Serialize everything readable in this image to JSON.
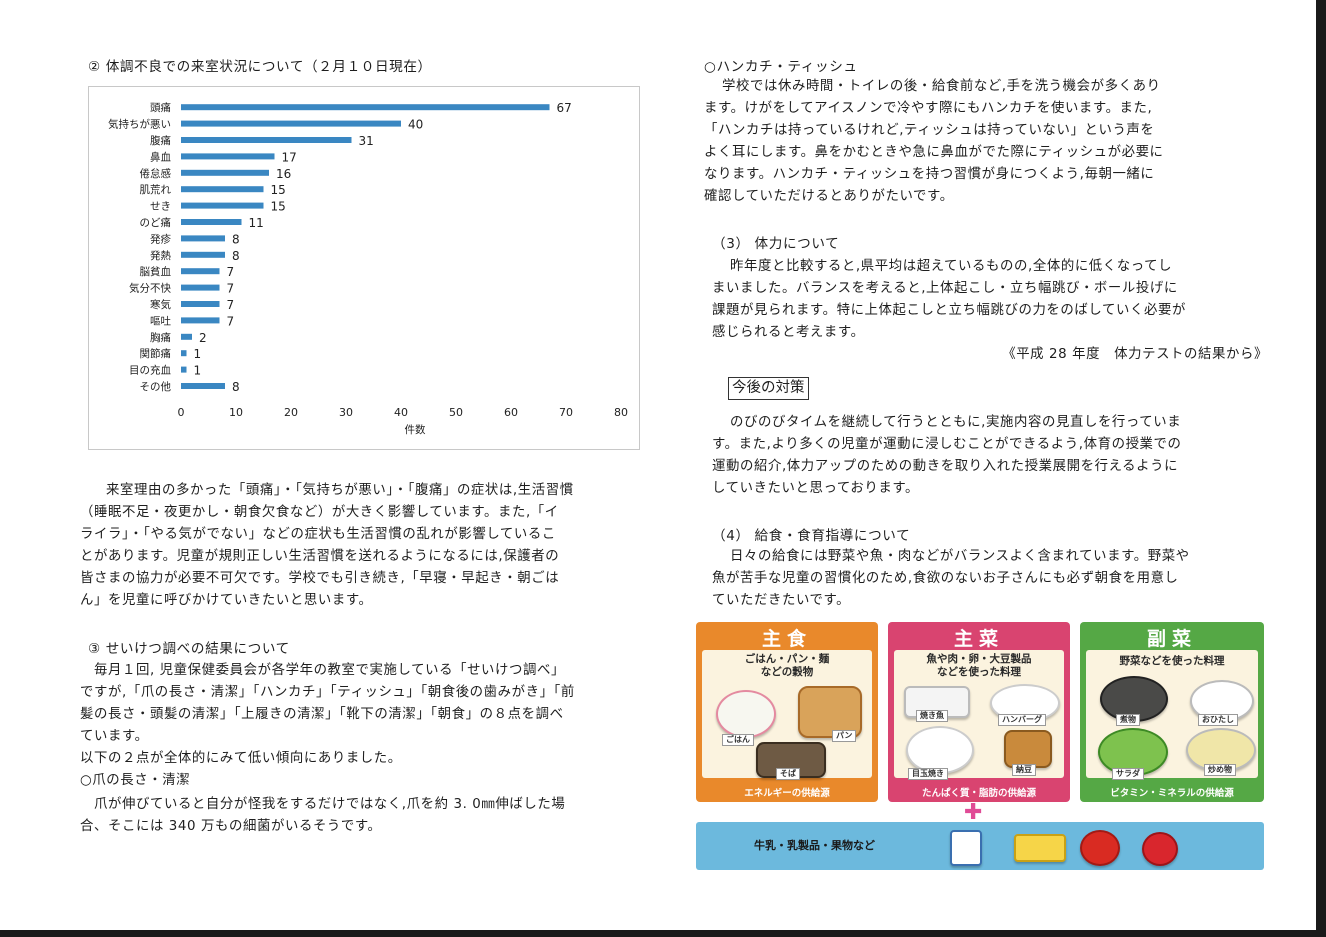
{
  "left": {
    "section2_title": "② 体調不良での来室状況について（２月１０日現在）",
    "para_after_chart": "来室理由の多かった「頭痛」・「気持ちが悪い」・「腹痛」の症状は,生活習慣\n（睡眠不足・夜更かし・朝食欠食など）が大きく影響しています。また,「イ\nライラ」・「やる気がでない」などの症状も生活習慣の乱れが影響しているこ\nとがあります。児童が規則正しい生活習慣を送れるようになるには,保護者の\n皆さまの協力が必要不可欠です。学校でも引き続き,「早寝・早起き・朝ごは\nん」を児童に呼びかけていきたいと思います。",
    "section3_title": "③ せいけつ調べの結果について",
    "section3_body": "毎月１回, 児童保健委員会が各学年の教室で実施している「せいけつ調べ」\nですが,「爪の長さ・清潔」「ハンカチ」「ティッシュ」「朝食後の歯みがき」「前\n髪の長さ・頭髪の清潔」「上履きの清潔」「靴下の清潔」「朝食」の８点を調べ\nています。",
    "section3_line2": "以下の２点が全体的にみて低い傾向にありました。",
    "nails_title": "○爪の長さ・清潔",
    "nails_body": "爪が伸びていると自分が怪我をするだけではなく,爪を約 3. 0㎜伸ばした場\n合、そこには 340 万もの細菌がいるそうです。"
  },
  "right": {
    "hanky_title": "○ハンカチ・ティッシュ",
    "hanky_body": "学校では休み時間・トイレの後・給食前など,手を洗う機会が多くあり\nます。けがをしてアイスノンで冷やす際にもハンカチを使います。また,\n「ハンカチは持っているけれど,ティッシュは持っていない」という声を\nよく耳にします。鼻をかむときや急に鼻血がでた際にティッシュが必要に\nなります。ハンカチ・ティッシュを持つ習慣が身につくよう,毎朝一緒に\n確認していただけるとありがたいです。",
    "fitness_title": "（3） 体力について",
    "fitness_body": "昨年度と比較すると,県平均は超えているものの,全体的に低くなってし\nまいました。バランスを考えると,上体起こし・立ち幅跳び・ボール投げに\n課題が見られます。特に上体起こしと立ち幅跳びの力をのばしていく必要が\n感じられると考えます。",
    "fitness_source": "《平成 28 年度　体力テストの結果から》",
    "future_box": "今後の対策",
    "future_body": "のびのびタイムを継続して行うとともに,実施内容の見直しを行っていま\nす。また,より多くの児童が運動に浸しむことができるよう,体育の授業での\n運動の紹介,体力アップのための動きを取り入れた授業展開を行えるように\nしていきたいと思っております。",
    "lunch_title": "（4） 給食・食育指導について",
    "lunch_body": "日々の給食には野菜や魚・肉などがバランスよく含まれています。野菜や\n魚が苦手な児童の習慣化のため,食欲のないお子さんにも必ず朝食を用意し\nていただきたいです。"
  },
  "food_image": {
    "panel1_title": "主食",
    "panel1_sub": "ごはん・パン・麺\nなどの穀物",
    "panel1_foot": "エネルギーの供給源",
    "panel1_labels": [
      "ごはん",
      "パン",
      "そば"
    ],
    "panel2_title": "主菜",
    "panel2_sub": "魚や肉・卵・大豆製品\nなどを使った料理",
    "panel2_foot": "たんぱく質・脂肪の供給源",
    "panel2_labels": [
      "焼き魚",
      "ハンバーグ",
      "目玉焼き",
      "納豆"
    ],
    "panel3_title": "副菜",
    "panel3_sub": "野菜などを使った料理",
    "panel3_foot": "ビタミン・ミネラルの供給源",
    "panel3_labels": [
      "煮物",
      "おひたし",
      "サラダ",
      "炒め物"
    ],
    "bottom_label": "牛乳・乳製品・果物など",
    "colors": {
      "shushoku": "#e9892b",
      "shusai": "#d94470",
      "fukusai": "#55a845",
      "dairy": "#6cb9dd",
      "bar": "#3a87c2"
    }
  },
  "chart_data": {
    "type": "bar",
    "orientation": "horizontal",
    "categories": [
      "頭痛",
      "気持ちが悪い",
      "腹痛",
      "鼻血",
      "倦怠感",
      "肌荒れ",
      "せき",
      "のど痛",
      "発疹",
      "発熱",
      "脳貧血",
      "気分不快",
      "寒気",
      "嘔吐",
      "胸痛",
      "関節痛",
      "目の充血",
      "その他"
    ],
    "values": [
      67,
      40,
      31,
      17,
      16,
      15,
      15,
      11,
      8,
      8,
      7,
      7,
      7,
      7,
      2,
      1,
      1,
      8
    ],
    "xlabel": "件数",
    "ylabel": "",
    "xlim": [
      0,
      80
    ],
    "xticks": [
      0,
      10,
      20,
      30,
      40,
      50,
      60,
      70,
      80
    ],
    "grid": false,
    "legend": "none",
    "data_labels": true
  }
}
